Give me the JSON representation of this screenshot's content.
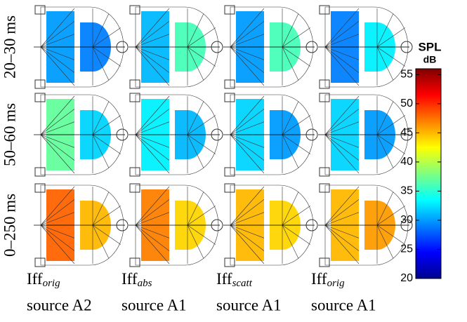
{
  "chart_data": {
    "type": "heatmap-panels",
    "title": "SPL",
    "unit": "dB",
    "rows": [
      "20–30 ms",
      "50–60 ms",
      "0–250 ms"
    ],
    "columns": [
      {
        "name": "Iff",
        "sub": "orig",
        "source": "source A2"
      },
      {
        "name": "Iff",
        "sub": "abs",
        "source": "source A1"
      },
      {
        "name": "Iff",
        "sub": "scatt",
        "source": "source A1"
      },
      {
        "name": "Iff",
        "sub": "orig",
        "source": "source A1"
      }
    ],
    "values": [
      [
        [
          30,
          29
        ],
        [
          31,
          36
        ],
        [
          30,
          36
        ],
        [
          29,
          33
        ]
      ],
      [
        [
          37,
          32
        ],
        [
          33,
          31
        ],
        [
          32,
          30
        ],
        [
          32,
          30
        ]
      ],
      [
        [
          48,
          45
        ],
        [
          47,
          44
        ],
        [
          45,
          44
        ],
        [
          45,
          46
        ]
      ]
    ],
    "zlim": [
      20,
      56
    ],
    "zticks": [
      20,
      25,
      30,
      35,
      40,
      45,
      50,
      55
    ]
  }
}
